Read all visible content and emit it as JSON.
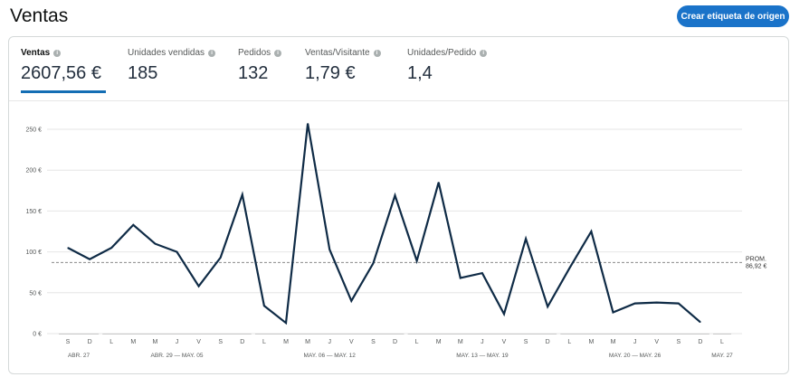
{
  "header": {
    "title": "Ventas",
    "button_label": "Crear etiqueta de origen"
  },
  "tabs": [
    {
      "label": "Ventas",
      "value": "2607,56 €",
      "active": true
    },
    {
      "label": "Unidades vendidas",
      "value": "185",
      "active": false
    },
    {
      "label": "Pedidos",
      "value": "132",
      "active": false
    },
    {
      "label": "Ventas/Visitante",
      "value": "1,79 €",
      "active": false
    },
    {
      "label": "Unidades/Pedido",
      "value": "1,4",
      "active": false
    }
  ],
  "colors": {
    "accent": "#146eb4",
    "button": "#1a73c9",
    "line": "#0f2b46",
    "grid": "#e6e6e6",
    "avg": "#8a8a8a"
  },
  "icons": {
    "info": "info-circle-icon"
  },
  "chart_data": {
    "type": "line",
    "ylim": [
      0,
      250
    ],
    "yticks": [
      "250 €",
      "200 €",
      "150 €",
      "100 €",
      "50 €",
      "0 €"
    ],
    "ytick_values": [
      250,
      200,
      150,
      100,
      50,
      0
    ],
    "x": [
      "S",
      "D",
      "L",
      "M",
      "M",
      "J",
      "V",
      "S",
      "D",
      "L",
      "M",
      "M",
      "J",
      "V",
      "S",
      "D",
      "L",
      "M",
      "M",
      "J",
      "V",
      "S",
      "D",
      "L",
      "M",
      "M",
      "J",
      "V",
      "S",
      "D",
      "L"
    ],
    "series": [
      {
        "values": [
          105,
          91,
          105,
          133,
          110,
          100,
          58,
          93,
          170,
          34,
          13,
          257,
          103,
          40,
          86,
          169,
          89,
          185,
          68,
          74,
          24,
          116,
          33,
          80,
          125,
          26,
          37,
          38,
          37,
          14,
          null
        ]
      }
    ],
    "average": {
      "label": "PROM.",
      "value_label": "86,92 €",
      "value": 86.92
    },
    "weeks": [
      {
        "label": "ABR. 27",
        "start": 0,
        "end": 1
      },
      {
        "label": "ABR. 29 — MAY. 05",
        "start": 2,
        "end": 8
      },
      {
        "label": "MAY. 06 — MAY. 12",
        "start": 9,
        "end": 15
      },
      {
        "label": "MAY. 13 — MAY. 19",
        "start": 16,
        "end": 22
      },
      {
        "label": "MAY. 20 — MAY. 26",
        "start": 23,
        "end": 29
      },
      {
        "label": "MAY. 27",
        "start": 30,
        "end": 30
      }
    ],
    "grid": true
  }
}
